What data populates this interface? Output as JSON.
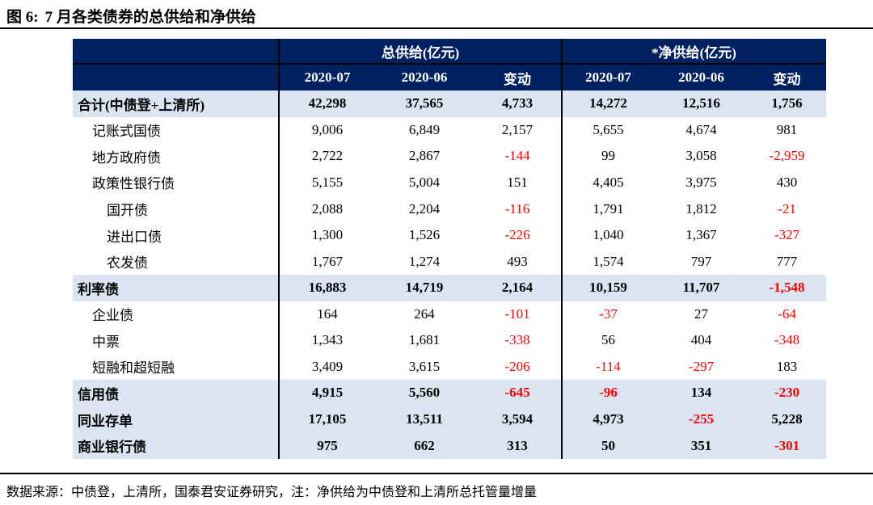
{
  "figure": {
    "title_prefix": "图 6:",
    "title_text": "7 月各类债券的总供给和净供给"
  },
  "table": {
    "group_headers": [
      "总供给(亿元)",
      "*净供给(亿元)"
    ],
    "column_headers": [
      "2020-07",
      "2020-06",
      "变动",
      "2020-07",
      "2020-06",
      "变动"
    ],
    "rows": [
      {
        "label": "合计(中债登+上清所)",
        "indent": 0,
        "emphasis": true,
        "values": [
          "42,298",
          "37,565",
          "4,733",
          "14,272",
          "12,516",
          "1,756"
        ]
      },
      {
        "label": "记账式国债",
        "indent": 1,
        "emphasis": false,
        "values": [
          "9,006",
          "6,849",
          "2,157",
          "5,655",
          "4,674",
          "981"
        ]
      },
      {
        "label": "地方政府债",
        "indent": 1,
        "emphasis": false,
        "values": [
          "2,722",
          "2,867",
          "-144",
          "99",
          "3,058",
          "-2,959"
        ]
      },
      {
        "label": "政策性银行债",
        "indent": 1,
        "emphasis": false,
        "values": [
          "5,155",
          "5,004",
          "151",
          "4,405",
          "3,975",
          "430"
        ]
      },
      {
        "label": "国开债",
        "indent": 2,
        "emphasis": false,
        "values": [
          "2,088",
          "2,204",
          "-116",
          "1,791",
          "1,812",
          "-21"
        ]
      },
      {
        "label": "进出口债",
        "indent": 2,
        "emphasis": false,
        "values": [
          "1,300",
          "1,526",
          "-226",
          "1,040",
          "1,367",
          "-327"
        ]
      },
      {
        "label": "农发债",
        "indent": 2,
        "emphasis": false,
        "values": [
          "1,767",
          "1,274",
          "493",
          "1,574",
          "797",
          "777"
        ]
      },
      {
        "label": "利率债",
        "indent": 0,
        "emphasis": true,
        "values": [
          "16,883",
          "14,719",
          "2,164",
          "10,159",
          "11,707",
          "-1,548"
        ]
      },
      {
        "label": "企业债",
        "indent": 1,
        "emphasis": false,
        "values": [
          "164",
          "264",
          "-101",
          "-37",
          "27",
          "-64"
        ]
      },
      {
        "label": "中票",
        "indent": 1,
        "emphasis": false,
        "values": [
          "1,343",
          "1,681",
          "-338",
          "56",
          "404",
          "-348"
        ]
      },
      {
        "label": "短融和超短融",
        "indent": 1,
        "emphasis": false,
        "values": [
          "3,409",
          "3,615",
          "-206",
          "-114",
          "-297",
          "183"
        ]
      },
      {
        "label": "信用债",
        "indent": 0,
        "emphasis": true,
        "values": [
          "4,915",
          "5,560",
          "-645",
          "-96",
          "134",
          "-230"
        ]
      },
      {
        "label": "同业存单",
        "indent": 0,
        "emphasis": true,
        "values": [
          "17,105",
          "13,511",
          "3,594",
          "4,973",
          "-255",
          "5,228"
        ]
      },
      {
        "label": "商业银行债",
        "indent": 0,
        "emphasis": true,
        "values": [
          "975",
          "662",
          "313",
          "50",
          "351",
          "-301"
        ]
      }
    ]
  },
  "footer": {
    "text": "数据来源：中债登，上清所，国泰君安证券研究，注：净供给为中债登和上清所总托管量增量"
  },
  "colors": {
    "header_bg": "#002060",
    "band_bg": "#DAE5F1",
    "negative": "#FF0000",
    "text": "#000000"
  }
}
